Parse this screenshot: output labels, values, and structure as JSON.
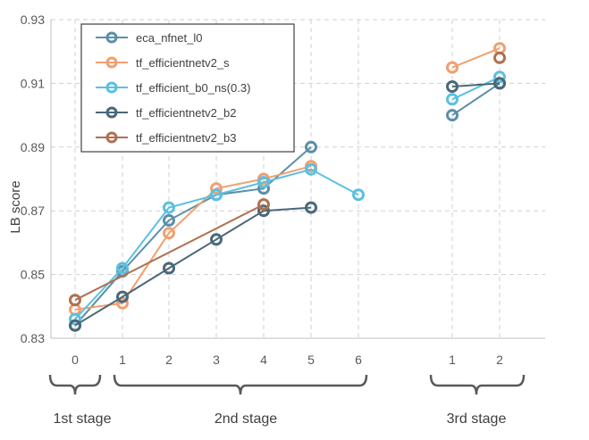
{
  "chart_data": {
    "type": "line",
    "ylabel": "LB score",
    "ylim": [
      0.83,
      0.93
    ],
    "yticks": [
      "0.83",
      "0.85",
      "0.87",
      "0.89",
      "0.91",
      "0.93"
    ],
    "grid": true,
    "legend_position": "top-left",
    "x_groups": [
      {
        "label": "1st stage",
        "ticks": [
          "0"
        ]
      },
      {
        "label": "2nd stage",
        "ticks": [
          "1",
          "2",
          "3",
          "4",
          "5",
          "6"
        ]
      },
      {
        "label": "3rd stage",
        "ticks": [
          "1",
          "2"
        ]
      }
    ],
    "series": [
      {
        "name": "eca_nfnet_l0",
        "color": "#5b8fa8",
        "points": [
          [
            0,
            0.834
          ],
          [
            1,
            0.851
          ],
          [
            2,
            0.867
          ],
          [
            3,
            0.875
          ],
          [
            4,
            0.877
          ],
          [
            5,
            0.89
          ],
          [
            8,
            0.9
          ],
          [
            9,
            0.91
          ]
        ]
      },
      {
        "name": "tf_efficientnetv2_s",
        "color": "#f0a070",
        "points": [
          [
            0,
            0.839
          ],
          [
            1,
            0.841
          ],
          [
            2,
            0.863
          ],
          [
            3,
            0.877
          ],
          [
            4,
            0.88
          ],
          [
            5,
            0.884
          ],
          [
            8,
            0.915
          ],
          [
            9,
            0.921
          ]
        ]
      },
      {
        "name": "tf_efficient_b0_ns(0.3)",
        "color": "#5bc0e0",
        "points": [
          [
            0,
            0.836
          ],
          [
            1,
            0.852
          ],
          [
            2,
            0.871
          ],
          [
            3,
            0.875
          ],
          [
            4,
            0.879
          ],
          [
            5,
            0.883
          ],
          [
            6,
            0.875
          ],
          [
            8,
            0.905
          ],
          [
            9,
            0.912
          ]
        ]
      },
      {
        "name": "tf_efficientnetv2_b2",
        "color": "#4a6878",
        "points": [
          [
            0,
            0.834
          ],
          [
            1,
            0.843
          ],
          [
            2,
            0.852
          ],
          [
            3,
            0.861
          ],
          [
            4,
            0.87
          ],
          [
            5,
            0.871
          ],
          [
            8,
            0.909
          ],
          [
            9,
            0.91
          ]
        ]
      },
      {
        "name": "tf_efficientnetv2_b3",
        "color": "#b07050",
        "points": [
          [
            0,
            0.842
          ],
          [
            4,
            0.872
          ],
          [
            9,
            0.918
          ]
        ]
      }
    ]
  }
}
